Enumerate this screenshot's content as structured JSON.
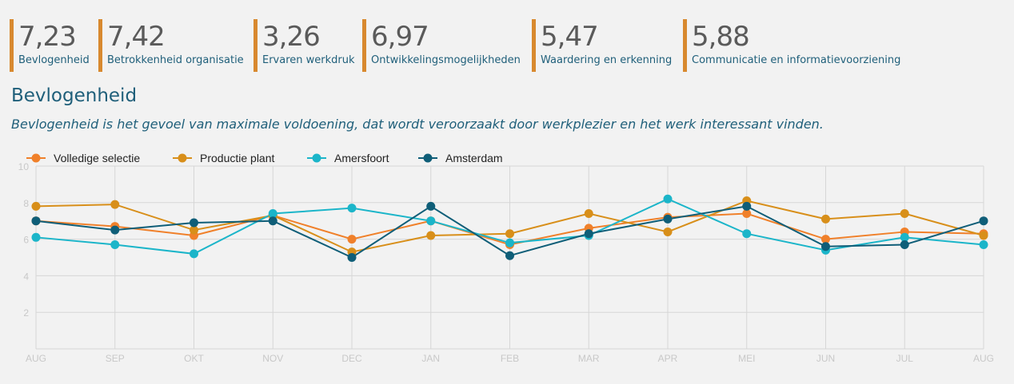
{
  "kpis": [
    {
      "value": "7,23",
      "label": "Bevlogenheid"
    },
    {
      "value": "7,42",
      "label": "Betrokkenheid organisatie"
    },
    {
      "value": "3,26",
      "label": "Ervaren werkdruk"
    },
    {
      "value": "6,97",
      "label": "Ontwikkelingsmogelijkheden"
    },
    {
      "value": "5,47",
      "label": "Waardering en erkenning"
    },
    {
      "value": "5,88",
      "label": "Communicatie en informatievoorziening"
    }
  ],
  "section": {
    "title": "Bevlogenheid",
    "subtitle": "Bevlogenheid is het gevoel van maximale voldoening, dat wordt veroorzaakt door werkplezier en het werk interessant vinden."
  },
  "chart_data": {
    "type": "line",
    "categories": [
      "AUG",
      "SEP",
      "OKT",
      "NOV",
      "DEC",
      "JAN",
      "FEB",
      "MAR",
      "APR",
      "MEI",
      "JUN",
      "JUL",
      "AUG"
    ],
    "ylim": [
      0,
      10
    ],
    "yticks": [
      2,
      4,
      6,
      8,
      10
    ],
    "grid": true,
    "legend_position": "top-left",
    "series": [
      {
        "name": "Volledige selectie",
        "color": "#f0802a",
        "values": [
          7.0,
          6.7,
          6.2,
          7.3,
          6.0,
          7.0,
          5.7,
          6.6,
          7.2,
          7.4,
          6.0,
          6.4,
          6.3
        ]
      },
      {
        "name": "Productie plant",
        "color": "#d88f1a",
        "values": [
          7.8,
          7.9,
          6.5,
          7.3,
          5.3,
          6.2,
          6.3,
          7.4,
          6.4,
          8.1,
          7.1,
          7.4,
          6.2
        ]
      },
      {
        "name": "Amersfoort",
        "color": "#1bb5c9",
        "values": [
          6.1,
          5.7,
          5.2,
          7.4,
          7.7,
          7.0,
          5.8,
          6.2,
          8.2,
          6.3,
          5.4,
          6.1,
          5.7
        ]
      },
      {
        "name": "Amsterdam",
        "color": "#0f5e78",
        "values": [
          7.0,
          6.5,
          6.9,
          7.0,
          5.0,
          7.8,
          5.1,
          6.3,
          7.1,
          7.8,
          5.6,
          5.7,
          7.0
        ]
      }
    ]
  }
}
